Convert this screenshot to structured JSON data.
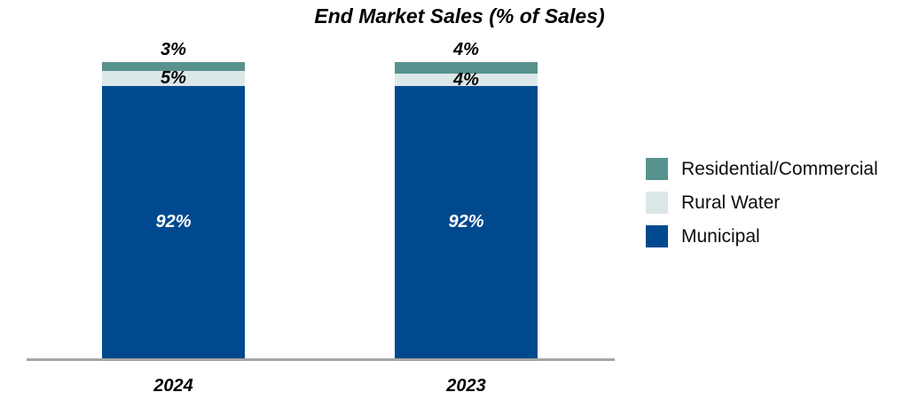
{
  "chart_data": {
    "type": "bar",
    "stacked": true,
    "title": "End Market Sales (% of Sales)",
    "categories": [
      "2024",
      "2023"
    ],
    "series": [
      {
        "name": "Municipal",
        "values": [
          92,
          92
        ],
        "color": "#00498E",
        "label_color": "#FFFFFF",
        "label_position": "inside"
      },
      {
        "name": "Rural Water",
        "values": [
          5,
          4
        ],
        "color": "#DCE7E8",
        "label_color": "#000000",
        "label_position": "inside"
      },
      {
        "name": "Residential/Commercial",
        "values": [
          3,
          4
        ],
        "color": "#58928F",
        "label_color": "#000000",
        "label_position": "above"
      }
    ],
    "value_suffix": "%",
    "ylim": [
      0,
      100
    ],
    "grid": false,
    "legend_position": "right",
    "xlabel": "",
    "ylabel": ""
  },
  "colors": {
    "axis_line": "#A6A6A6",
    "background": "#FFFFFF",
    "title_text": "#000000"
  }
}
